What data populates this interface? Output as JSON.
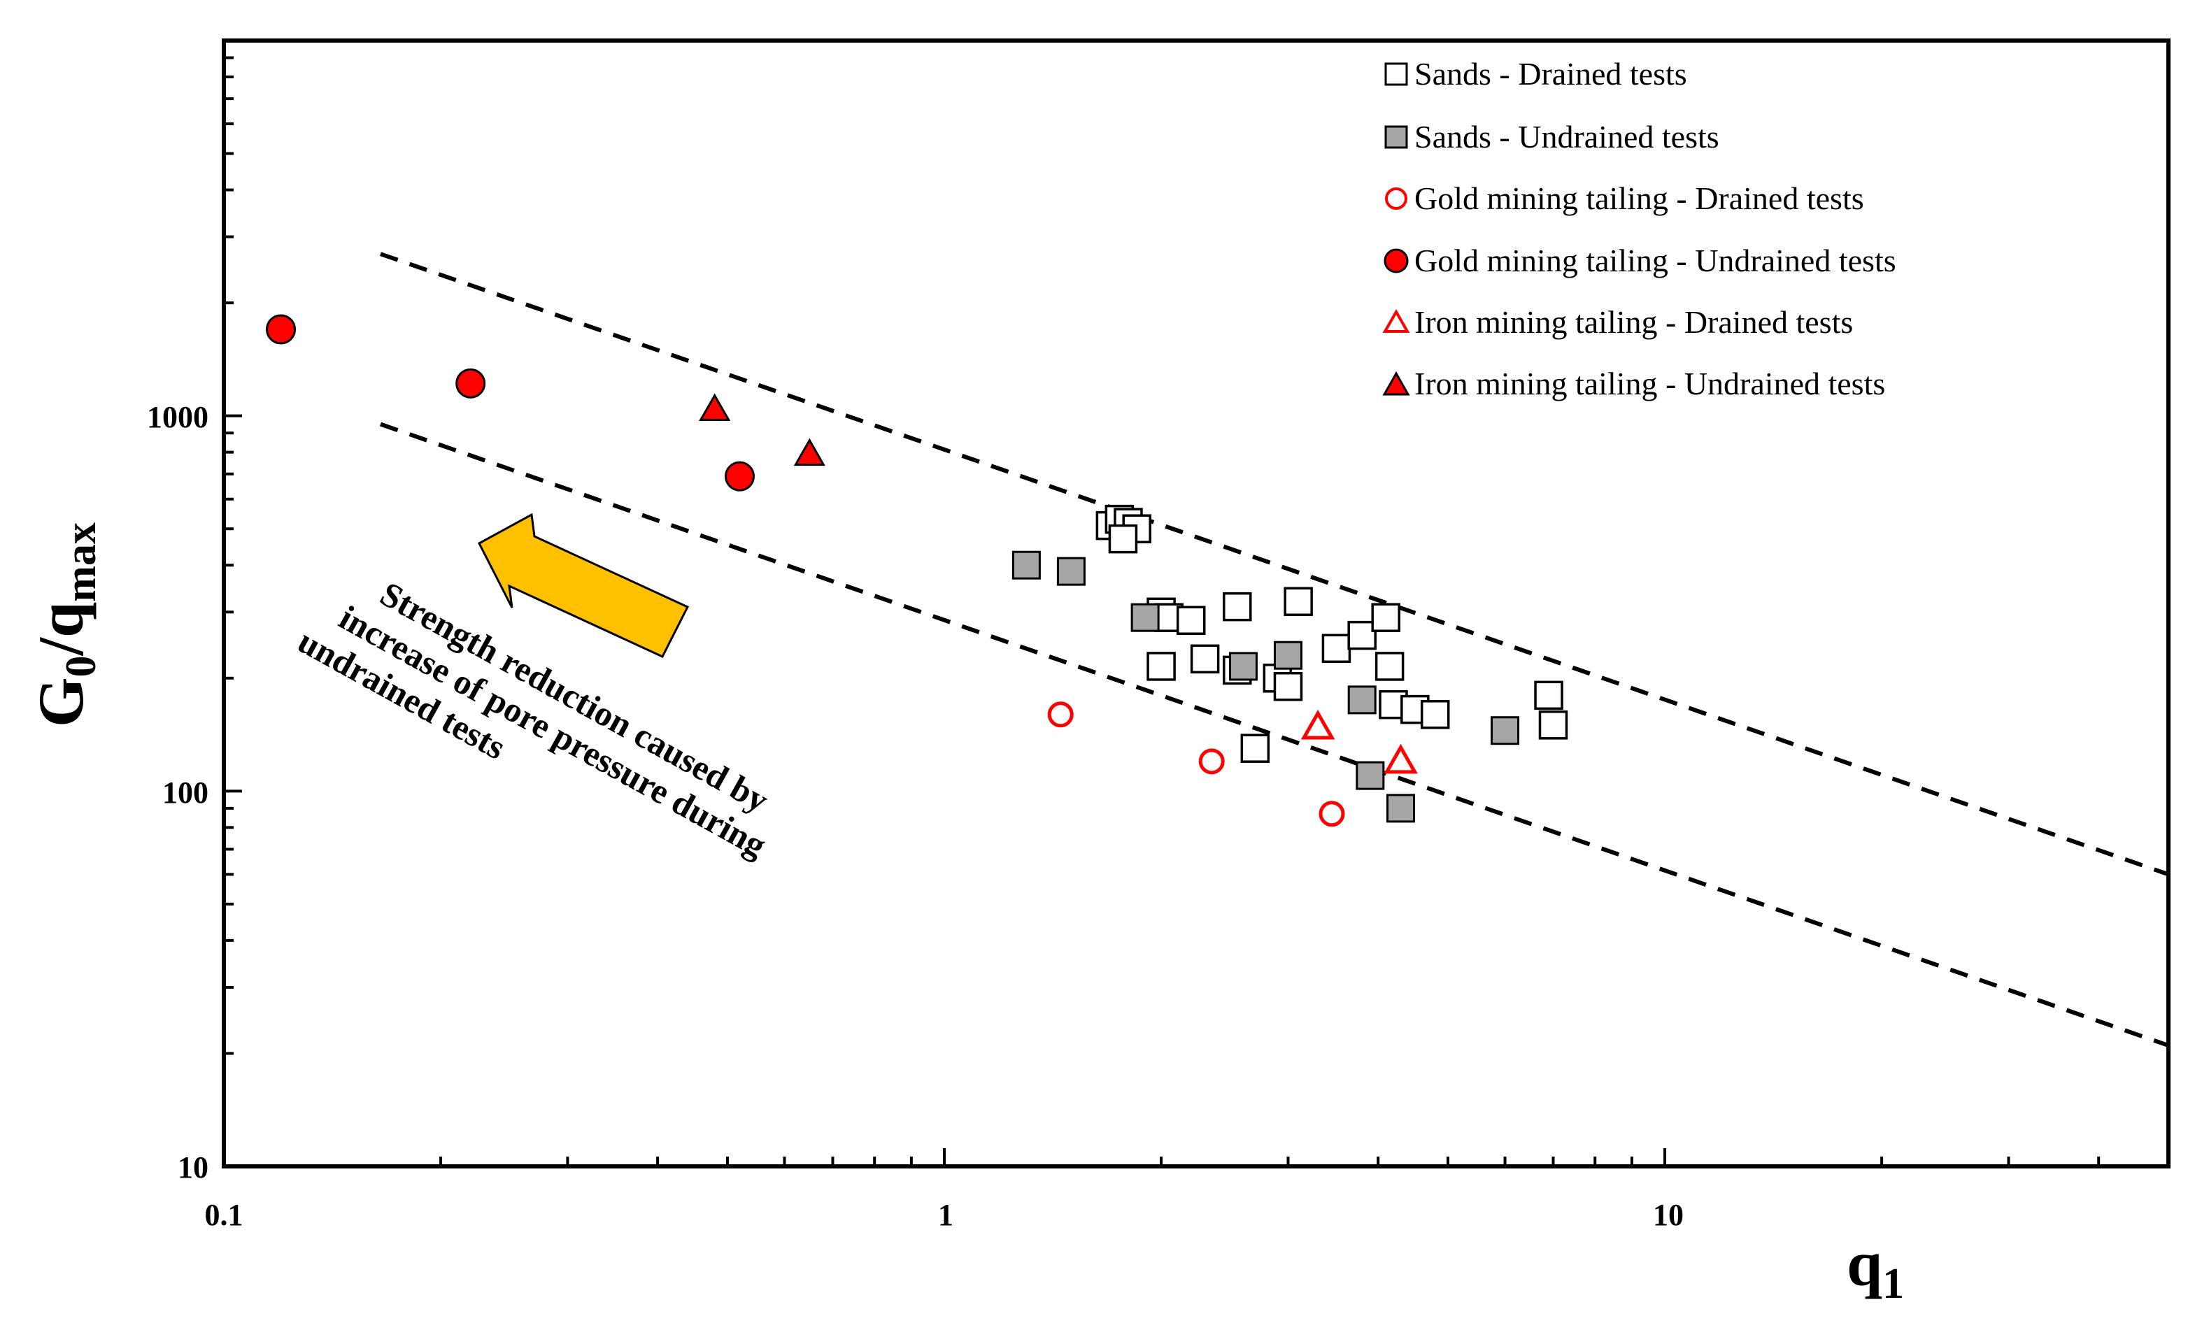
{
  "chart_data": {
    "type": "scatter",
    "title": "",
    "xlabel": "q1",
    "ylabel": "G0/qmax",
    "x_scale": "log",
    "y_scale": "log",
    "xlim": [
      0.1,
      50
    ],
    "ylim": [
      10,
      10000
    ],
    "x_ticks": [
      {
        "value": 0.1,
        "label": "0.1"
      },
      {
        "value": 1,
        "label": "1"
      },
      {
        "value": 10,
        "label": "10"
      }
    ],
    "y_ticks": [
      {
        "value": 10,
        "label": "10"
      },
      {
        "value": 100,
        "label": "100"
      },
      {
        "value": 1000,
        "label": "1000"
      }
    ],
    "grid": false,
    "legend_position": "top-right",
    "series": [
      {
        "name": "Sands - Drained tests",
        "marker": "square",
        "filled": false,
        "fill": "#ffffff",
        "stroke": "#000000",
        "x": [
          1.7,
          1.75,
          1.8,
          1.85,
          1.77,
          2.0,
          2.05,
          2.2,
          2.55,
          3.1,
          2.0,
          2.3,
          2.55,
          2.9,
          3.0,
          3.5,
          3.8,
          4.1,
          4.15,
          4.2,
          4.5,
          4.8,
          6.9,
          7.0,
          2.7
        ],
        "y": [
          510,
          530,
          520,
          500,
          470,
          300,
          290,
          285,
          310,
          320,
          215,
          225,
          210,
          200,
          190,
          240,
          260,
          290,
          215,
          170,
          165,
          160,
          180,
          150,
          130
        ]
      },
      {
        "name": "Sands - Undrained tests",
        "marker": "square",
        "filled": true,
        "fill": "#a6a6a6",
        "stroke": "#000000",
        "x": [
          1.3,
          1.5,
          1.9,
          2.6,
          3.0,
          3.8,
          3.9,
          4.3,
          6.0
        ],
        "y": [
          400,
          385,
          290,
          215,
          230,
          175,
          110,
          90,
          145
        ]
      },
      {
        "name": "Gold mining tailing - Drained tests",
        "marker": "circle",
        "filled": false,
        "fill": "#ffffff",
        "stroke": "#ff0000",
        "x": [
          1.45,
          2.35,
          3.45
        ],
        "y": [
          160,
          120,
          87
        ]
      },
      {
        "name": "Gold mining tailing - Undrained tests",
        "marker": "circle",
        "filled": true,
        "fill": "#ff0000",
        "stroke": "#000000",
        "x": [
          0.12,
          0.22,
          0.52
        ],
        "y": [
          1700,
          1220,
          690
        ]
      },
      {
        "name": "Iron mining tailing - Drained tests",
        "marker": "triangle",
        "filled": false,
        "fill": "#ffffff",
        "stroke": "#ff0000",
        "x": [
          3.3,
          4.3
        ],
        "y": [
          148,
          120
        ]
      },
      {
        "name": "Iron mining tailing - Undrained tests",
        "marker": "triangle",
        "filled": true,
        "fill": "#ff0000",
        "stroke": "#000000",
        "x": [
          0.48,
          0.65
        ],
        "y": [
          1040,
          790
        ]
      }
    ],
    "reference_lines": [
      {
        "name": "upper-bound",
        "style": "dashed",
        "x": [
          0.165,
          50
        ],
        "y": [
          2700,
          60
        ]
      },
      {
        "name": "lower-bound",
        "style": "dashed",
        "x": [
          0.165,
          50
        ],
        "y": [
          950,
          21
        ]
      }
    ],
    "annotations": [
      {
        "name": "strength-reduction-note",
        "lines": [
          "Strength reduction caused by",
          "increase of pore pressure during",
          "undrained tests"
        ],
        "arrow": "pointing toward upper-left",
        "arrow_color": "#ffc000"
      }
    ]
  }
}
